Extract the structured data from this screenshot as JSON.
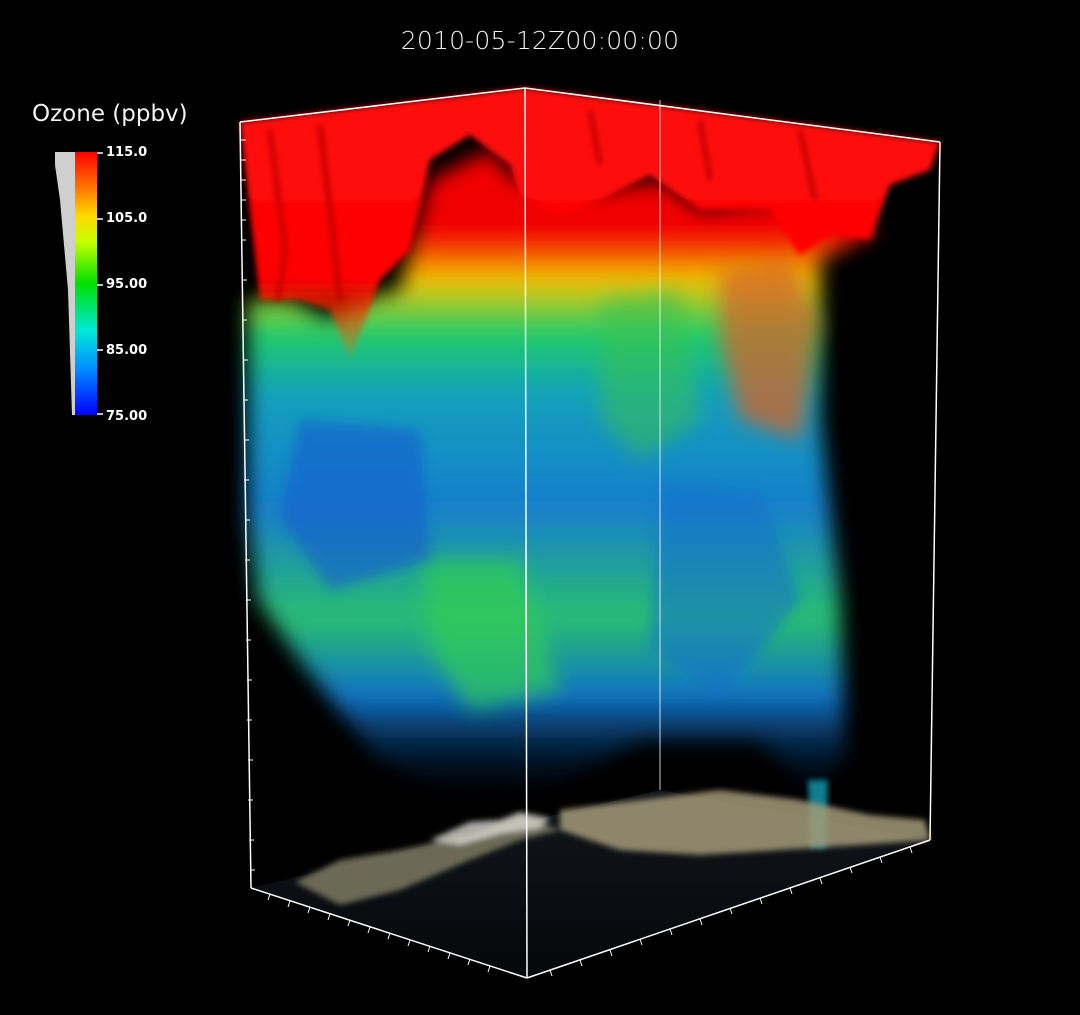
{
  "timestamp": "2010-05-12Z00:00:00",
  "colorbar": {
    "title": "Ozone (ppbv)",
    "ticks": [
      "115.0",
      "105.0",
      "95.00",
      "85.00",
      "75.00"
    ],
    "range": [
      75,
      115
    ],
    "colors": [
      "#0000ff",
      "#00b0ff",
      "#00e8c8",
      "#00e000",
      "#d8ff00",
      "#ffb000",
      "#ff3000",
      "#ff0000"
    ]
  },
  "visualization": {
    "variable": "ozone",
    "style": "volume rendering over terrain",
    "terrain_color": "#8a8465"
  }
}
